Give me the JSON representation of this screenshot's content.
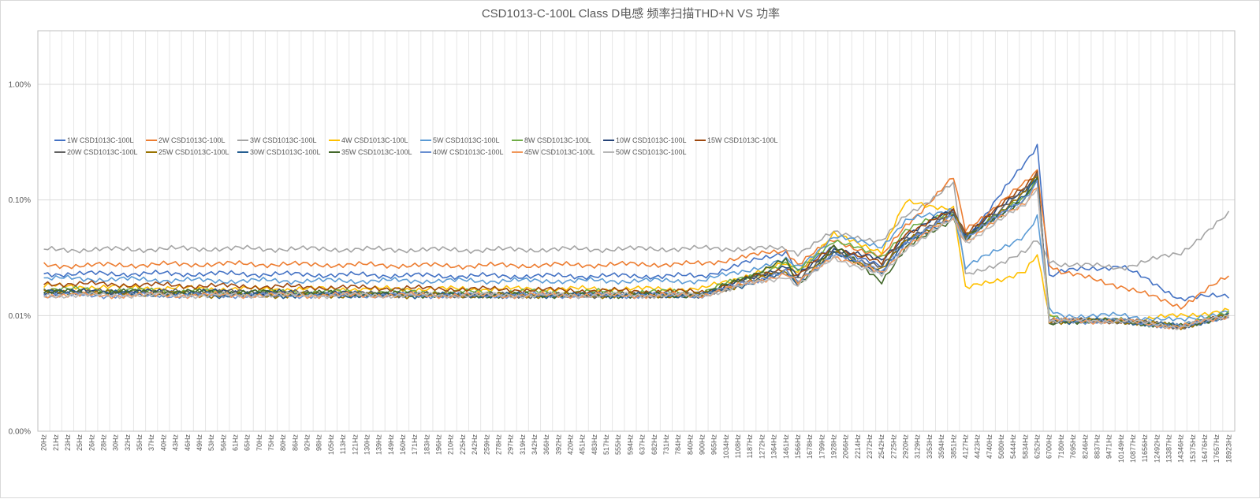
{
  "chart_data": {
    "type": "line",
    "title": "CSD1013-C-100L   Class D电感 频率扫描THD+N   VS 功率",
    "xlabel": "",
    "ylabel": "",
    "y_scale": "log",
    "ylim": [
      "0.00%",
      "1.00%"
    ],
    "y_ticks": [
      {
        "label": "0.00%",
        "value": 0.001
      },
      {
        "label": "0.01%",
        "value": 0.01
      },
      {
        "label": "0.10%",
        "value": 0.1
      },
      {
        "label": "1.00%",
        "value": 1.0
      }
    ],
    "grid": true,
    "legend_position": "top-left",
    "x_tick_labels": [
      "20Hz",
      "21Hz",
      "23Hz",
      "25Hz",
      "26Hz",
      "28Hz",
      "30Hz",
      "32Hz",
      "35Hz",
      "37Hz",
      "40Hz",
      "43Hz",
      "46Hz",
      "49Hz",
      "53Hz",
      "56Hz",
      "61Hz",
      "65Hz",
      "70Hz",
      "75Hz",
      "80Hz",
      "86Hz",
      "92Hz",
      "98Hz",
      "105Hz",
      "113Hz",
      "121Hz",
      "130Hz",
      "139Hz",
      "149Hz",
      "160Hz",
      "171Hz",
      "183Hz",
      "196Hz",
      "210Hz",
      "225Hz",
      "242Hz",
      "259Hz",
      "278Hz",
      "297Hz",
      "319Hz",
      "342Hz",
      "366Hz",
      "392Hz",
      "420Hz",
      "451Hz",
      "483Hz",
      "517Hz",
      "555Hz",
      "594Hz",
      "637Hz",
      "682Hz",
      "731Hz",
      "784Hz",
      "840Hz",
      "900Hz",
      "965Hz",
      "1034Hz",
      "1108Hz",
      "1187Hz",
      "1272Hz",
      "1364Hz",
      "1461Hz",
      "1566Hz",
      "1678Hz",
      "1799Hz",
      "1928Hz",
      "2066Hz",
      "2214Hz",
      "2372Hz",
      "2542Hz",
      "2725Hz",
      "2920Hz",
      "3129Hz",
      "3353Hz",
      "3594Hz",
      "3851Hz",
      "4127Hz",
      "4423Hz",
      "4740Hz",
      "5080Hz",
      "5444Hz",
      "5834Hz",
      "6252Hz",
      "6700Hz",
      "7180Hz",
      "7695Hz",
      "8246Hz",
      "8837Hz",
      "9471Hz",
      "10149Hz",
      "10877Hz",
      "11656Hz",
      "12492Hz",
      "13387Hz",
      "14346Hz",
      "15375Hz",
      "16476Hz",
      "17657Hz",
      "18923Hz"
    ],
    "series_points_x": [
      0,
      15,
      35,
      55,
      62,
      63,
      66,
      70,
      72,
      76,
      77,
      82,
      83,
      84,
      85,
      90,
      95,
      99
    ],
    "series": [
      {
        "name": "1W CSD1013C-100L",
        "color": "#4472c4",
        "values": [
          0.023,
          0.023,
          0.022,
          0.022,
          0.036,
          0.024,
          0.04,
          0.026,
          0.045,
          0.074,
          0.045,
          0.21,
          0.3,
          0.022,
          0.024,
          0.027,
          0.014,
          0.015
        ]
      },
      {
        "name": "2W CSD1013C-100L",
        "color": "#ed7d31",
        "values": [
          0.027,
          0.028,
          0.027,
          0.028,
          0.037,
          0.028,
          0.045,
          0.032,
          0.06,
          0.155,
          0.055,
          0.14,
          0.18,
          0.028,
          0.024,
          0.018,
          0.012,
          0.022
        ]
      },
      {
        "name": "3W CSD1013C-100L",
        "color": "#a5a5a5",
        "values": [
          0.037,
          0.038,
          0.037,
          0.038,
          0.038,
          0.035,
          0.052,
          0.044,
          0.072,
          0.14,
          0.022,
          0.035,
          0.045,
          0.03,
          0.028,
          0.026,
          0.035,
          0.075
        ]
      },
      {
        "name": "4W CSD1013C-100L",
        "color": "#ffc000",
        "values": [
          0.018,
          0.017,
          0.017,
          0.017,
          0.028,
          0.024,
          0.05,
          0.036,
          0.095,
          0.085,
          0.017,
          0.024,
          0.033,
          0.01,
          0.009,
          0.009,
          0.01,
          0.011
        ]
      },
      {
        "name": "5W CSD1013C-100L",
        "color": "#5b9bd5",
        "values": [
          0.021,
          0.02,
          0.02,
          0.02,
          0.03,
          0.026,
          0.048,
          0.04,
          0.065,
          0.085,
          0.026,
          0.05,
          0.07,
          0.011,
          0.01,
          0.01,
          0.009,
          0.011
        ]
      },
      {
        "name": "8W CSD1013C-100L",
        "color": "#70ad47",
        "values": [
          0.017,
          0.016,
          0.016,
          0.016,
          0.028,
          0.024,
          0.045,
          0.032,
          0.055,
          0.08,
          0.048,
          0.11,
          0.15,
          0.01,
          0.009,
          0.009,
          0.008,
          0.011
        ]
      },
      {
        "name": "10W CSD1013C-100L",
        "color": "#264478",
        "values": [
          0.016,
          0.016,
          0.015,
          0.015,
          0.027,
          0.022,
          0.038,
          0.03,
          0.05,
          0.082,
          0.05,
          0.125,
          0.17,
          0.009,
          0.009,
          0.009,
          0.008,
          0.01
        ]
      },
      {
        "name": "15W CSD1013C-100L",
        "color": "#9e480e",
        "values": [
          0.019,
          0.018,
          0.017,
          0.016,
          0.026,
          0.022,
          0.04,
          0.028,
          0.052,
          0.08,
          0.052,
          0.13,
          0.18,
          0.009,
          0.009,
          0.009,
          0.008,
          0.01
        ]
      },
      {
        "name": "20W CSD1013C-100L",
        "color": "#636363",
        "values": [
          0.016,
          0.016,
          0.015,
          0.015,
          0.025,
          0.021,
          0.036,
          0.026,
          0.046,
          0.078,
          0.048,
          0.12,
          0.165,
          0.009,
          0.009,
          0.009,
          0.008,
          0.01
        ]
      },
      {
        "name": "25W CSD1013C-100L",
        "color": "#997300",
        "values": [
          0.016,
          0.015,
          0.015,
          0.015,
          0.024,
          0.02,
          0.035,
          0.025,
          0.044,
          0.075,
          0.047,
          0.115,
          0.16,
          0.009,
          0.009,
          0.009,
          0.008,
          0.01
        ]
      },
      {
        "name": "30W CSD1013C-100L",
        "color": "#255e91",
        "values": [
          0.016,
          0.015,
          0.015,
          0.015,
          0.023,
          0.019,
          0.034,
          0.024,
          0.042,
          0.072,
          0.046,
          0.11,
          0.155,
          0.009,
          0.009,
          0.009,
          0.008,
          0.01
        ]
      },
      {
        "name": "35W CSD1013C-100L",
        "color": "#43682b",
        "values": [
          0.016,
          0.016,
          0.015,
          0.015,
          0.03,
          0.018,
          0.04,
          0.02,
          0.038,
          0.07,
          0.045,
          0.105,
          0.15,
          0.008,
          0.009,
          0.009,
          0.008,
          0.01
        ]
      },
      {
        "name": "40W CSD1013C-100L",
        "color": "#698ed0",
        "values": [
          0.015,
          0.015,
          0.015,
          0.015,
          0.024,
          0.019,
          0.035,
          0.024,
          0.042,
          0.075,
          0.046,
          0.105,
          0.145,
          0.009,
          0.009,
          0.009,
          0.008,
          0.01
        ]
      },
      {
        "name": "45W CSD1013C-100L",
        "color": "#f1975a",
        "values": [
          0.015,
          0.015,
          0.015,
          0.015,
          0.023,
          0.019,
          0.033,
          0.023,
          0.04,
          0.07,
          0.044,
          0.095,
          0.135,
          0.009,
          0.009,
          0.009,
          0.008,
          0.01
        ]
      },
      {
        "name": "50W CSD1013C-100L",
        "color": "#b7b7b7",
        "values": [
          0.015,
          0.015,
          0.015,
          0.015,
          0.022,
          0.018,
          0.032,
          0.022,
          0.038,
          0.068,
          0.043,
          0.092,
          0.13,
          0.009,
          0.009,
          0.009,
          0.008,
          0.01
        ]
      }
    ]
  }
}
